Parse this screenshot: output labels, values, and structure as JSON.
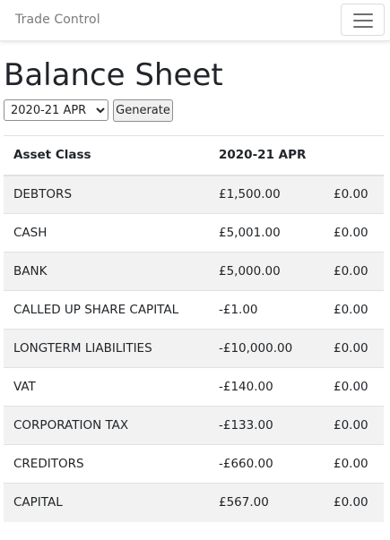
{
  "navbar": {
    "brand": "Trade Control",
    "toggler_icon": "hamburger-menu-icon"
  },
  "page": {
    "title": "Balance Sheet"
  },
  "controls": {
    "period_selected": "2020-21 APR",
    "generate_label": "Generate"
  },
  "table": {
    "headers": [
      "Asset Class",
      "2020-21 APR",
      ""
    ],
    "rows": [
      [
        "DEBTORS",
        "£1,500.00",
        "£0.00"
      ],
      [
        "CASH",
        "£5,001.00",
        "£0.00"
      ],
      [
        "BANK",
        "£5,000.00",
        "£0.00"
      ],
      [
        "CALLED UP SHARE CAPITAL",
        "-£1.00",
        "£0.00"
      ],
      [
        "LONGTERM LIABILITIES",
        "-£10,000.00",
        "£0.00"
      ],
      [
        "VAT",
        "-£140.00",
        "£0.00"
      ],
      [
        "CORPORATION TAX",
        "-£133.00",
        "£0.00"
      ],
      [
        "CREDITORS",
        "-£660.00",
        "£0.00"
      ],
      [
        "CAPITAL",
        "£567.00",
        "£0.00"
      ]
    ]
  },
  "colors": {
    "stripe": "#f2f2f2",
    "border": "#dee2e6",
    "brand_text": "#7a7a7a"
  }
}
